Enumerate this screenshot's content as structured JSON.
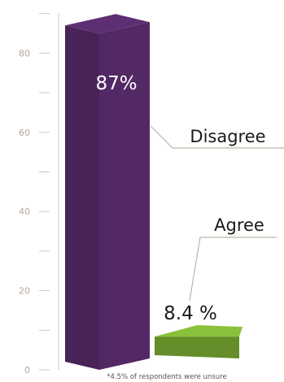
{
  "chart_data": {
    "type": "bar",
    "categories": [
      "Disagree",
      "Agree"
    ],
    "values": [
      87,
      8.4
    ],
    "value_labels": [
      "87%",
      "8.4 %"
    ],
    "y_ticks": [
      0,
      20,
      40,
      60,
      80
    ],
    "ylim": [
      0,
      87
    ],
    "footnote": "*4.5% of respondents were unsure",
    "colors": {
      "disagree": "#4e2660",
      "agree": "#6e9a2e",
      "axis": "#cfc6bb",
      "tick_text": "#b5a99a",
      "callout": "#bdb4a6"
    }
  }
}
